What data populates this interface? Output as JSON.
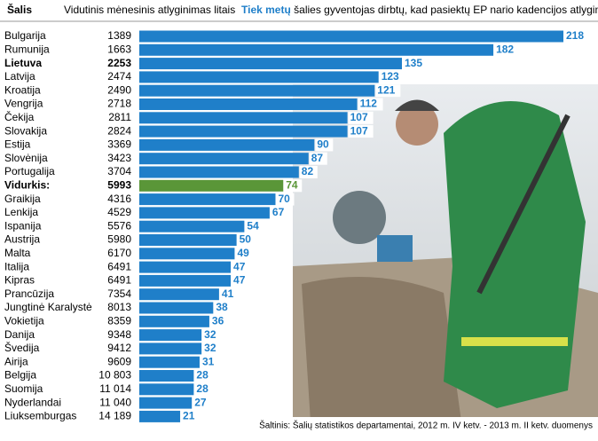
{
  "chart_data": {
    "type": "bar",
    "orientation": "horizontal",
    "headers": {
      "country": "Šalis",
      "salary": "Vidutinis mėnesinis atlyginimas litais",
      "years_bold": "Tiek metų",
      "years_rest": " šalies gyventojas dirbtų, kad pasiektų EP nario kadencijos atlyginimą"
    },
    "categories": [
      "Bulgarija",
      "Rumunija",
      "Lietuva",
      "Latvija",
      "Kroatija",
      "Vengrija",
      "Čekija",
      "Slovakija",
      "Estija",
      "Slovėnija",
      "Portugalija",
      "Vidurkis:",
      "Graikija",
      "Lenkija",
      "Ispanija",
      "Austrija",
      "Malta",
      "Italija",
      "Kipras",
      "Prancūzija",
      "Jungtinė Karalystė",
      "Vokietija",
      "Danija",
      "Švedija",
      "Airija",
      "Belgija",
      "Suomija",
      "Nyderlandai",
      "Liuksemburgas"
    ],
    "salaries": [
      "1389",
      "1663",
      "2253",
      "2474",
      "2490",
      "2718",
      "2811",
      "2824",
      "3369",
      "3423",
      "3704",
      "5993",
      "4316",
      "4529",
      "5576",
      "5980",
      "6170",
      "6491",
      "6491",
      "7354",
      "8013",
      "8359",
      "9348",
      "9412",
      "9609",
      "10 803",
      "11 014",
      "11 040",
      "14 189"
    ],
    "values": [
      218,
      182,
      135,
      123,
      121,
      112,
      107,
      107,
      90,
      87,
      82,
      74,
      70,
      67,
      54,
      50,
      49,
      47,
      47,
      41,
      38,
      36,
      32,
      32,
      31,
      28,
      28,
      27,
      21
    ],
    "color": "#1f7fc9",
    "highlight_index": 11,
    "highlight_color": "#5a9638",
    "bold_indices": [
      2,
      11
    ],
    "xlim": [
      0,
      218
    ],
    "source": "Šaltinis: Šalių statistikos departamentai, 2012 m. IV ketv. - 2013 m. II ketv. duomenys"
  }
}
